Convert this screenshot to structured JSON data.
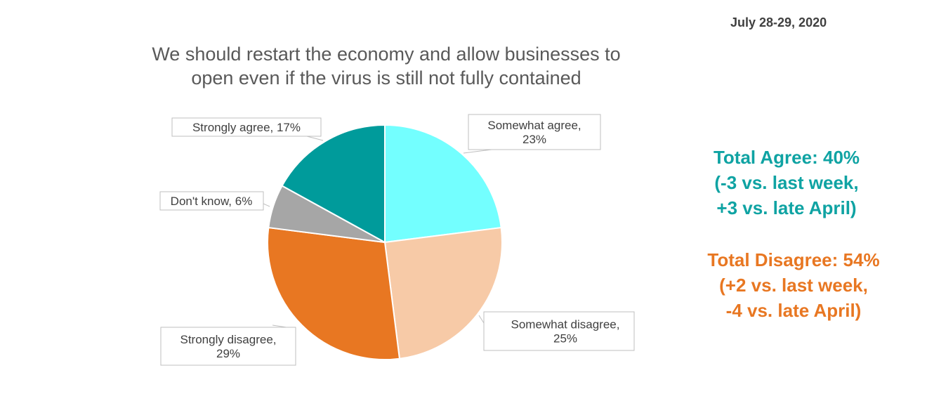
{
  "date": "July 28-29, 2020",
  "title_lines": [
    "We should restart the economy and allow businesses to",
    "open even if the virus is still not fully contained"
  ],
  "chart_data": {
    "type": "pie",
    "title": "We should restart the economy and allow businesses to open even if the virus is still not fully contained",
    "slices": [
      {
        "name": "Somewhat agree",
        "value": 23,
        "color": "#73ffff",
        "label_lines": [
          "Somewhat agree,",
          "23%"
        ]
      },
      {
        "name": "Somewhat disagree",
        "value": 25,
        "color": "#f7caa7",
        "label_lines": [
          "Somewhat disagree,",
          "25%"
        ]
      },
      {
        "name": "Strongly disagree",
        "value": 29,
        "color": "#e87722",
        "label_lines": [
          "Strongly disagree,",
          "29%"
        ]
      },
      {
        "name": "Don't know",
        "value": 6,
        "color": "#a6a6a6",
        "label_lines": [
          "Don't know, 6%"
        ]
      },
      {
        "name": "Strongly agree",
        "value": 17,
        "color": "#009b9b",
        "label_lines": [
          "Strongly agree, 17%"
        ]
      }
    ]
  },
  "summary": {
    "agree": {
      "color": "#0fa3a3",
      "lines": [
        "Total Agree: 40%",
        "(-3 vs. last week,",
        "+3 vs. late April)"
      ]
    },
    "disagree": {
      "color": "#e87722",
      "lines": [
        "Total Disagree: 54%",
        "(+2 vs. last week,",
        "-4 vs. late April)"
      ]
    }
  }
}
